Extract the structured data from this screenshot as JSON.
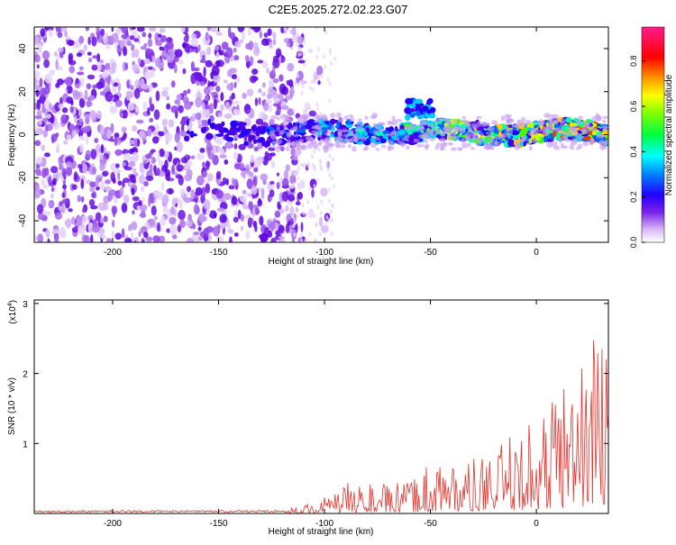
{
  "title": "C2E5.2025.272.02.23.G07",
  "chart_data": [
    {
      "type": "heatmap",
      "xlabel": "Height of straight line (km)",
      "ylabel": "Frequency (Hz)",
      "xlim": [
        -237,
        34
      ],
      "ylim": [
        -50,
        50
      ],
      "x_ticks": [
        "-200",
        "-150",
        "-100",
        "-50",
        "0"
      ],
      "x_tick_values": [
        -200,
        -150,
        -100,
        -50,
        0
      ],
      "y_ticks": [
        "-40",
        "-20",
        "0",
        "20",
        "40"
      ],
      "y_tick_values": [
        -40,
        -20,
        0,
        20,
        40
      ],
      "colorbar": {
        "label": "Normalized spectral amplitude",
        "range": [
          0,
          0.95
        ],
        "ticks": [
          "0.0",
          "0.2",
          "0.4",
          "0.6",
          "0.8"
        ],
        "tick_values": [
          0.0,
          0.2,
          0.4,
          0.6,
          0.8
        ]
      },
      "features": {
        "noise_region_km": [
          -237,
          -110
        ],
        "signal_band_freq_hz": [
          0,
          5
        ],
        "signal_region_km": [
          -170,
          34
        ],
        "burst_near_km": -55,
        "burst_freq_hz": [
          8,
          16
        ]
      }
    },
    {
      "type": "line",
      "xlabel": "Height of straight line (km)",
      "ylabel": "SNR (10 * v/v)",
      "scale_label": "(x10",
      "scale_exp": "4",
      "scale_close": ")",
      "xlim": [
        -237,
        34
      ],
      "ylim": [
        0,
        3.05
      ],
      "x_ticks": [
        "-200",
        "-150",
        "-100",
        "-50",
        "0"
      ],
      "x_tick_values": [
        -200,
        -150,
        -100,
        -50,
        0
      ],
      "y_ticks": [
        "1",
        "2",
        "3"
      ],
      "y_tick_values": [
        1,
        2,
        3
      ],
      "series": [
        {
          "name": "SNR",
          "color": "#e8322b",
          "x": [
            -237,
            -200,
            -150,
            -120,
            -105,
            -95,
            -90,
            -80,
            -70,
            -60,
            -55,
            -50,
            -45,
            -40,
            -30,
            -20,
            -10,
            0,
            10,
            20,
            30,
            34
          ],
          "y": [
            0.03,
            0.03,
            0.04,
            0.05,
            0.12,
            0.25,
            0.35,
            0.35,
            0.32,
            0.35,
            0.5,
            0.6,
            0.7,
            0.6,
            0.6,
            0.7,
            0.9,
            1.1,
            1.5,
            1.9,
            2.2,
            2.1
          ]
        }
      ]
    }
  ]
}
